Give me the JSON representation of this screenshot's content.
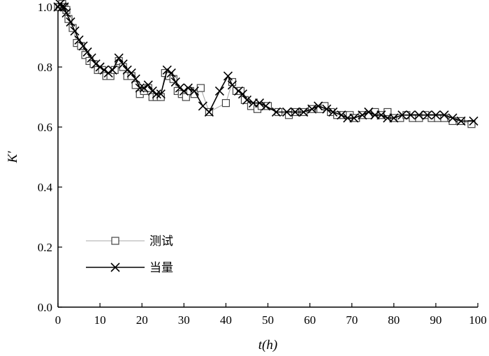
{
  "chart_data": {
    "type": "line",
    "xlabel": "t(h)",
    "ylabel": "K′",
    "xlim": [
      0,
      100
    ],
    "ylim": [
      0,
      1.0
    ],
    "xticks": [
      0,
      10,
      20,
      30,
      40,
      50,
      60,
      70,
      80,
      90,
      100
    ],
    "yticks": [
      0.0,
      0.2,
      0.4,
      0.6,
      0.8,
      1.0
    ],
    "xtick_labels": [
      "0",
      "10",
      "20",
      "30",
      "40",
      "50",
      "60",
      "70",
      "80",
      "90",
      "100"
    ],
    "ytick_labels": [
      "0.0",
      "0.2",
      "0.4",
      "0.6",
      "0.8",
      "1.0"
    ],
    "grid": false,
    "legend_position": "lower-left",
    "series": [
      {
        "name": "测试",
        "color": "#aaaaaa",
        "marker": "square",
        "points": [
          [
            0.0,
            1.0
          ],
          [
            0.5,
            1.0
          ],
          [
            1.0,
            1.01
          ],
          [
            1.5,
            1.0
          ],
          [
            2.0,
            0.99
          ],
          [
            2.5,
            0.96
          ],
          [
            3.5,
            0.93
          ],
          [
            4.5,
            0.88
          ],
          [
            5.5,
            0.87
          ],
          [
            6.5,
            0.84
          ],
          [
            7.5,
            0.82
          ],
          [
            8.5,
            0.81
          ],
          [
            9.5,
            0.79
          ],
          [
            10.5,
            0.79
          ],
          [
            11.5,
            0.77
          ],
          [
            12.5,
            0.77
          ],
          [
            13.5,
            0.79
          ],
          [
            14.5,
            0.82
          ],
          [
            15.5,
            0.8
          ],
          [
            16.5,
            0.77
          ],
          [
            17.5,
            0.77
          ],
          [
            18.5,
            0.74
          ],
          [
            19.5,
            0.71
          ],
          [
            20.5,
            0.72
          ],
          [
            21.5,
            0.73
          ],
          [
            22.5,
            0.7
          ],
          [
            23.5,
            0.7
          ],
          [
            24.5,
            0.7
          ],
          [
            25.5,
            0.78
          ],
          [
            26.5,
            0.77
          ],
          [
            27.5,
            0.76
          ],
          [
            28.5,
            0.72
          ],
          [
            29.5,
            0.71
          ],
          [
            30.5,
            0.7
          ],
          [
            31.5,
            0.72
          ],
          [
            32.5,
            0.71
          ],
          [
            34.0,
            0.73
          ],
          [
            36.0,
            0.65
          ],
          [
            40.0,
            0.68
          ],
          [
            41.5,
            0.75
          ],
          [
            42.5,
            0.72
          ],
          [
            43.5,
            0.72
          ],
          [
            44.5,
            0.69
          ],
          [
            46.0,
            0.67
          ],
          [
            47.5,
            0.66
          ],
          [
            48.5,
            0.67
          ],
          [
            50.0,
            0.67
          ],
          [
            52.5,
            0.65
          ],
          [
            55.0,
            0.64
          ],
          [
            56.5,
            0.65
          ],
          [
            58.5,
            0.65
          ],
          [
            60.5,
            0.66
          ],
          [
            62.5,
            0.66
          ],
          [
            63.5,
            0.67
          ],
          [
            65.0,
            0.65
          ],
          [
            66.5,
            0.64
          ],
          [
            68.0,
            0.64
          ],
          [
            69.5,
            0.64
          ],
          [
            71.0,
            0.63
          ],
          [
            72.5,
            0.64
          ],
          [
            74.0,
            0.64
          ],
          [
            75.5,
            0.65
          ],
          [
            77.0,
            0.64
          ],
          [
            78.5,
            0.65
          ],
          [
            80.0,
            0.63
          ],
          [
            81.5,
            0.63
          ],
          [
            83.0,
            0.64
          ],
          [
            84.5,
            0.63
          ],
          [
            86.0,
            0.63
          ],
          [
            87.5,
            0.64
          ],
          [
            89.0,
            0.63
          ],
          [
            90.5,
            0.63
          ],
          [
            92.0,
            0.63
          ],
          [
            94.0,
            0.62
          ],
          [
            96.0,
            0.62
          ],
          [
            98.5,
            0.61
          ]
        ]
      },
      {
        "name": "当量",
        "color": "#000000",
        "marker": "x",
        "points": [
          [
            0.0,
            1.0
          ],
          [
            0.5,
            1.01
          ],
          [
            1.0,
            1.0
          ],
          [
            1.5,
            1.0
          ],
          [
            2.0,
            0.98
          ],
          [
            3.0,
            0.95
          ],
          [
            4.0,
            0.92
          ],
          [
            5.0,
            0.89
          ],
          [
            6.0,
            0.87
          ],
          [
            7.0,
            0.85
          ],
          [
            8.0,
            0.83
          ],
          [
            9.0,
            0.81
          ],
          [
            10.0,
            0.8
          ],
          [
            11.0,
            0.79
          ],
          [
            12.0,
            0.78
          ],
          [
            13.0,
            0.79
          ],
          [
            14.5,
            0.83
          ],
          [
            15.5,
            0.81
          ],
          [
            16.5,
            0.79
          ],
          [
            17.5,
            0.78
          ],
          [
            18.5,
            0.76
          ],
          [
            19.5,
            0.73
          ],
          [
            20.5,
            0.73
          ],
          [
            21.5,
            0.74
          ],
          [
            22.5,
            0.72
          ],
          [
            23.5,
            0.71
          ],
          [
            24.5,
            0.71
          ],
          [
            26.0,
            0.79
          ],
          [
            27.0,
            0.78
          ],
          [
            28.0,
            0.75
          ],
          [
            29.0,
            0.73
          ],
          [
            30.0,
            0.72
          ],
          [
            31.0,
            0.73
          ],
          [
            32.5,
            0.72
          ],
          [
            34.5,
            0.67
          ],
          [
            36.0,
            0.65
          ],
          [
            38.5,
            0.72
          ],
          [
            40.5,
            0.77
          ],
          [
            41.5,
            0.74
          ],
          [
            43.0,
            0.72
          ],
          [
            44.0,
            0.71
          ],
          [
            45.0,
            0.69
          ],
          [
            46.5,
            0.68
          ],
          [
            48.0,
            0.68
          ],
          [
            49.5,
            0.67
          ],
          [
            52.0,
            0.65
          ],
          [
            54.5,
            0.65
          ],
          [
            56.5,
            0.65
          ],
          [
            58.5,
            0.65
          ],
          [
            60.5,
            0.66
          ],
          [
            62.0,
            0.67
          ],
          [
            64.0,
            0.66
          ],
          [
            65.5,
            0.65
          ],
          [
            67.5,
            0.64
          ],
          [
            69.0,
            0.63
          ],
          [
            70.5,
            0.63
          ],
          [
            72.5,
            0.64
          ],
          [
            74.0,
            0.65
          ],
          [
            75.5,
            0.64
          ],
          [
            77.0,
            0.64
          ],
          [
            78.5,
            0.63
          ],
          [
            80.0,
            0.63
          ],
          [
            82.0,
            0.64
          ],
          [
            84.0,
            0.64
          ],
          [
            86.0,
            0.64
          ],
          [
            88.0,
            0.64
          ],
          [
            90.0,
            0.64
          ],
          [
            92.0,
            0.64
          ],
          [
            94.0,
            0.63
          ],
          [
            96.0,
            0.62
          ],
          [
            99.0,
            0.62
          ]
        ]
      }
    ]
  }
}
